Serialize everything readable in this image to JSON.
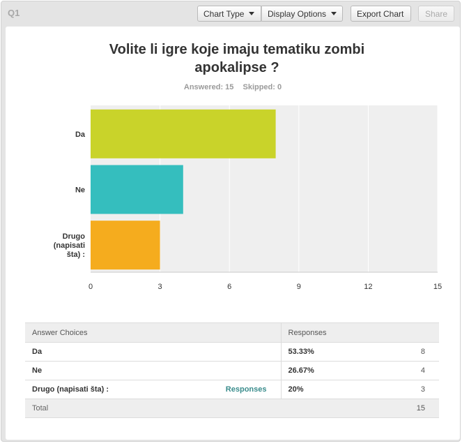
{
  "question_label": "Q1",
  "toolbar": {
    "chart_type": "Chart Type",
    "display_options": "Display Options",
    "export_chart": "Export Chart",
    "share": "Share"
  },
  "title": "Volite li igre koje imaju tematiku zombi apokalipse ?",
  "stats": {
    "answered": "Answered: 15",
    "skipped": "Skipped: 0"
  },
  "colors": {
    "bar_da": "#c9d32a",
    "bar_ne": "#35bebe",
    "bar_drugo": "#f5ac1e",
    "plot_bg": "#efefef",
    "link": "#3a8c8c"
  },
  "chart_data": {
    "type": "bar",
    "orientation": "horizontal",
    "categories": [
      "Da",
      "Ne",
      "Drugo (napisati šta) :"
    ],
    "category_lines": [
      [
        "Da"
      ],
      [
        "Ne"
      ],
      [
        "Drugo",
        "(napisati",
        "šta) :"
      ]
    ],
    "values": [
      8,
      4,
      3
    ],
    "xlim": [
      0,
      15
    ],
    "ticks": [
      0,
      3,
      6,
      9,
      12,
      15
    ],
    "grid": true,
    "legend": "none"
  },
  "table": {
    "headers": {
      "choices": "Answer Choices",
      "responses": "Responses"
    },
    "rows": [
      {
        "choice": "Da",
        "percent": "53.33%",
        "count": "8"
      },
      {
        "choice": "Ne",
        "percent": "26.67%",
        "count": "4"
      },
      {
        "choice": "Drugo (napisati šta) :",
        "percent": "20%",
        "count": "3",
        "link": "Responses"
      }
    ],
    "total": {
      "label": "Total",
      "count": "15"
    }
  }
}
